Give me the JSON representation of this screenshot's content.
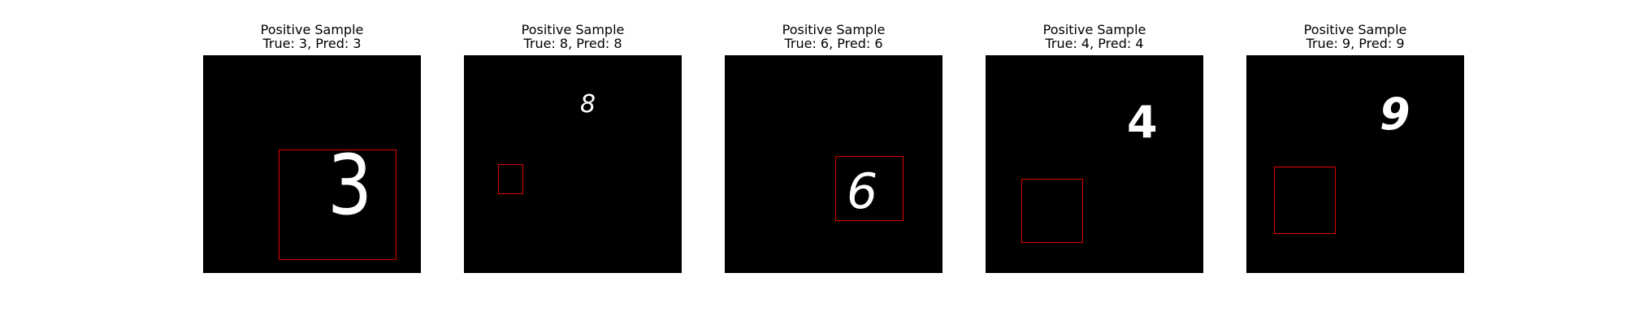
{
  "panels": [
    {
      "title": "Positive Sample",
      "subtitle": "True: 3, Pred: 3",
      "digit": "3"
    },
    {
      "title": "Positive Sample",
      "subtitle": "True: 8, Pred: 8",
      "digit": "8"
    },
    {
      "title": "Positive Sample",
      "subtitle": "True: 6, Pred: 6",
      "digit": "6"
    },
    {
      "title": "Positive Sample",
      "subtitle": "True: 4, Pred: 4",
      "digit": "4"
    },
    {
      "title": "Positive Sample",
      "subtitle": "True: 9, Pred: 9",
      "digit": "9"
    }
  ],
  "colors": {
    "background": "#000000",
    "digit": "#ffffff",
    "bbox": "#e00000"
  }
}
